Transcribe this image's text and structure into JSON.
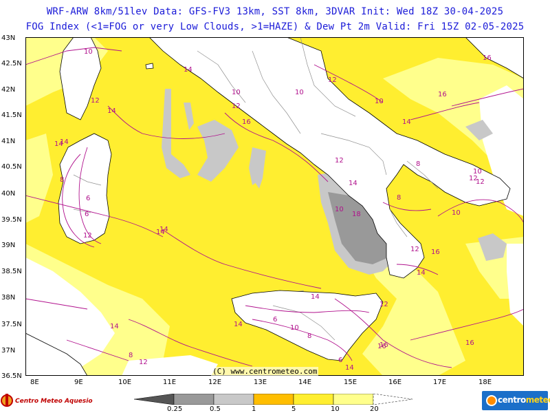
{
  "header": {
    "line1": "WRF-ARW 8km/51lev  Data: GFS-FV3 13km, SST 8km, 3DVAR  Init: Wed 18Z 30-04-2025",
    "line2": "FOG Index (<1=FOG or very Low Clouds, >1=HAZE) & Dew Pt 2m  Valid: Fri 15Z 02-05-2025"
  },
  "axes": {
    "lat_labels": [
      "43N",
      "42.5N",
      "42N",
      "41.5N",
      "41N",
      "40.5N",
      "40N",
      "39.5N",
      "39N",
      "38.5N",
      "38N",
      "37.5N",
      "37N",
      "36.5N"
    ],
    "lon_labels": [
      "8E",
      "9E",
      "10E",
      "11E",
      "12E",
      "13E",
      "14E",
      "15E",
      "16E",
      "17E",
      "18E"
    ]
  },
  "map": {
    "copyright": "(C) www.centrometeo.com",
    "colors": {
      "fog_index_5_10": "#ffee30",
      "fog_index_10_20": "#ffff8c",
      "fog_index_above_20": "#ffffff",
      "fog_index_1_5": "#ffbe00",
      "fog_index_0_5_1": "#c8c8c8",
      "fog_index_0_25_0_5": "#999999",
      "dewpoint_contour": "#b0108c",
      "coastline": "#000000",
      "borders": "#909090"
    },
    "dewpoint_contour_labels": [
      "10",
      "14",
      "16",
      "12",
      "10",
      "14",
      "12",
      "14",
      "10",
      "8",
      "14",
      "16",
      "12",
      "8",
      "10",
      "6",
      "10",
      "12",
      "14",
      "16",
      "14",
      "8",
      "6",
      "12",
      "12",
      "10",
      "14",
      "16",
      "14",
      "16",
      "18",
      "12",
      "12",
      "14",
      "12",
      "8",
      "10",
      "6",
      "8",
      "14",
      "10",
      "6",
      "14",
      "16",
      "16",
      "14",
      "12",
      "14"
    ]
  },
  "colorbar": {
    "labels": [
      "0.25",
      "0.5",
      "1",
      "5",
      "10",
      "20"
    ],
    "colors": [
      "#555555",
      "#999999",
      "#c8c8c8",
      "#ffbe00",
      "#ffee30",
      "#ffff8c"
    ]
  },
  "logos": {
    "left": "Centro Meteo Aquesio",
    "right_prefix": "centro",
    "right_suffix": "meteo"
  }
}
